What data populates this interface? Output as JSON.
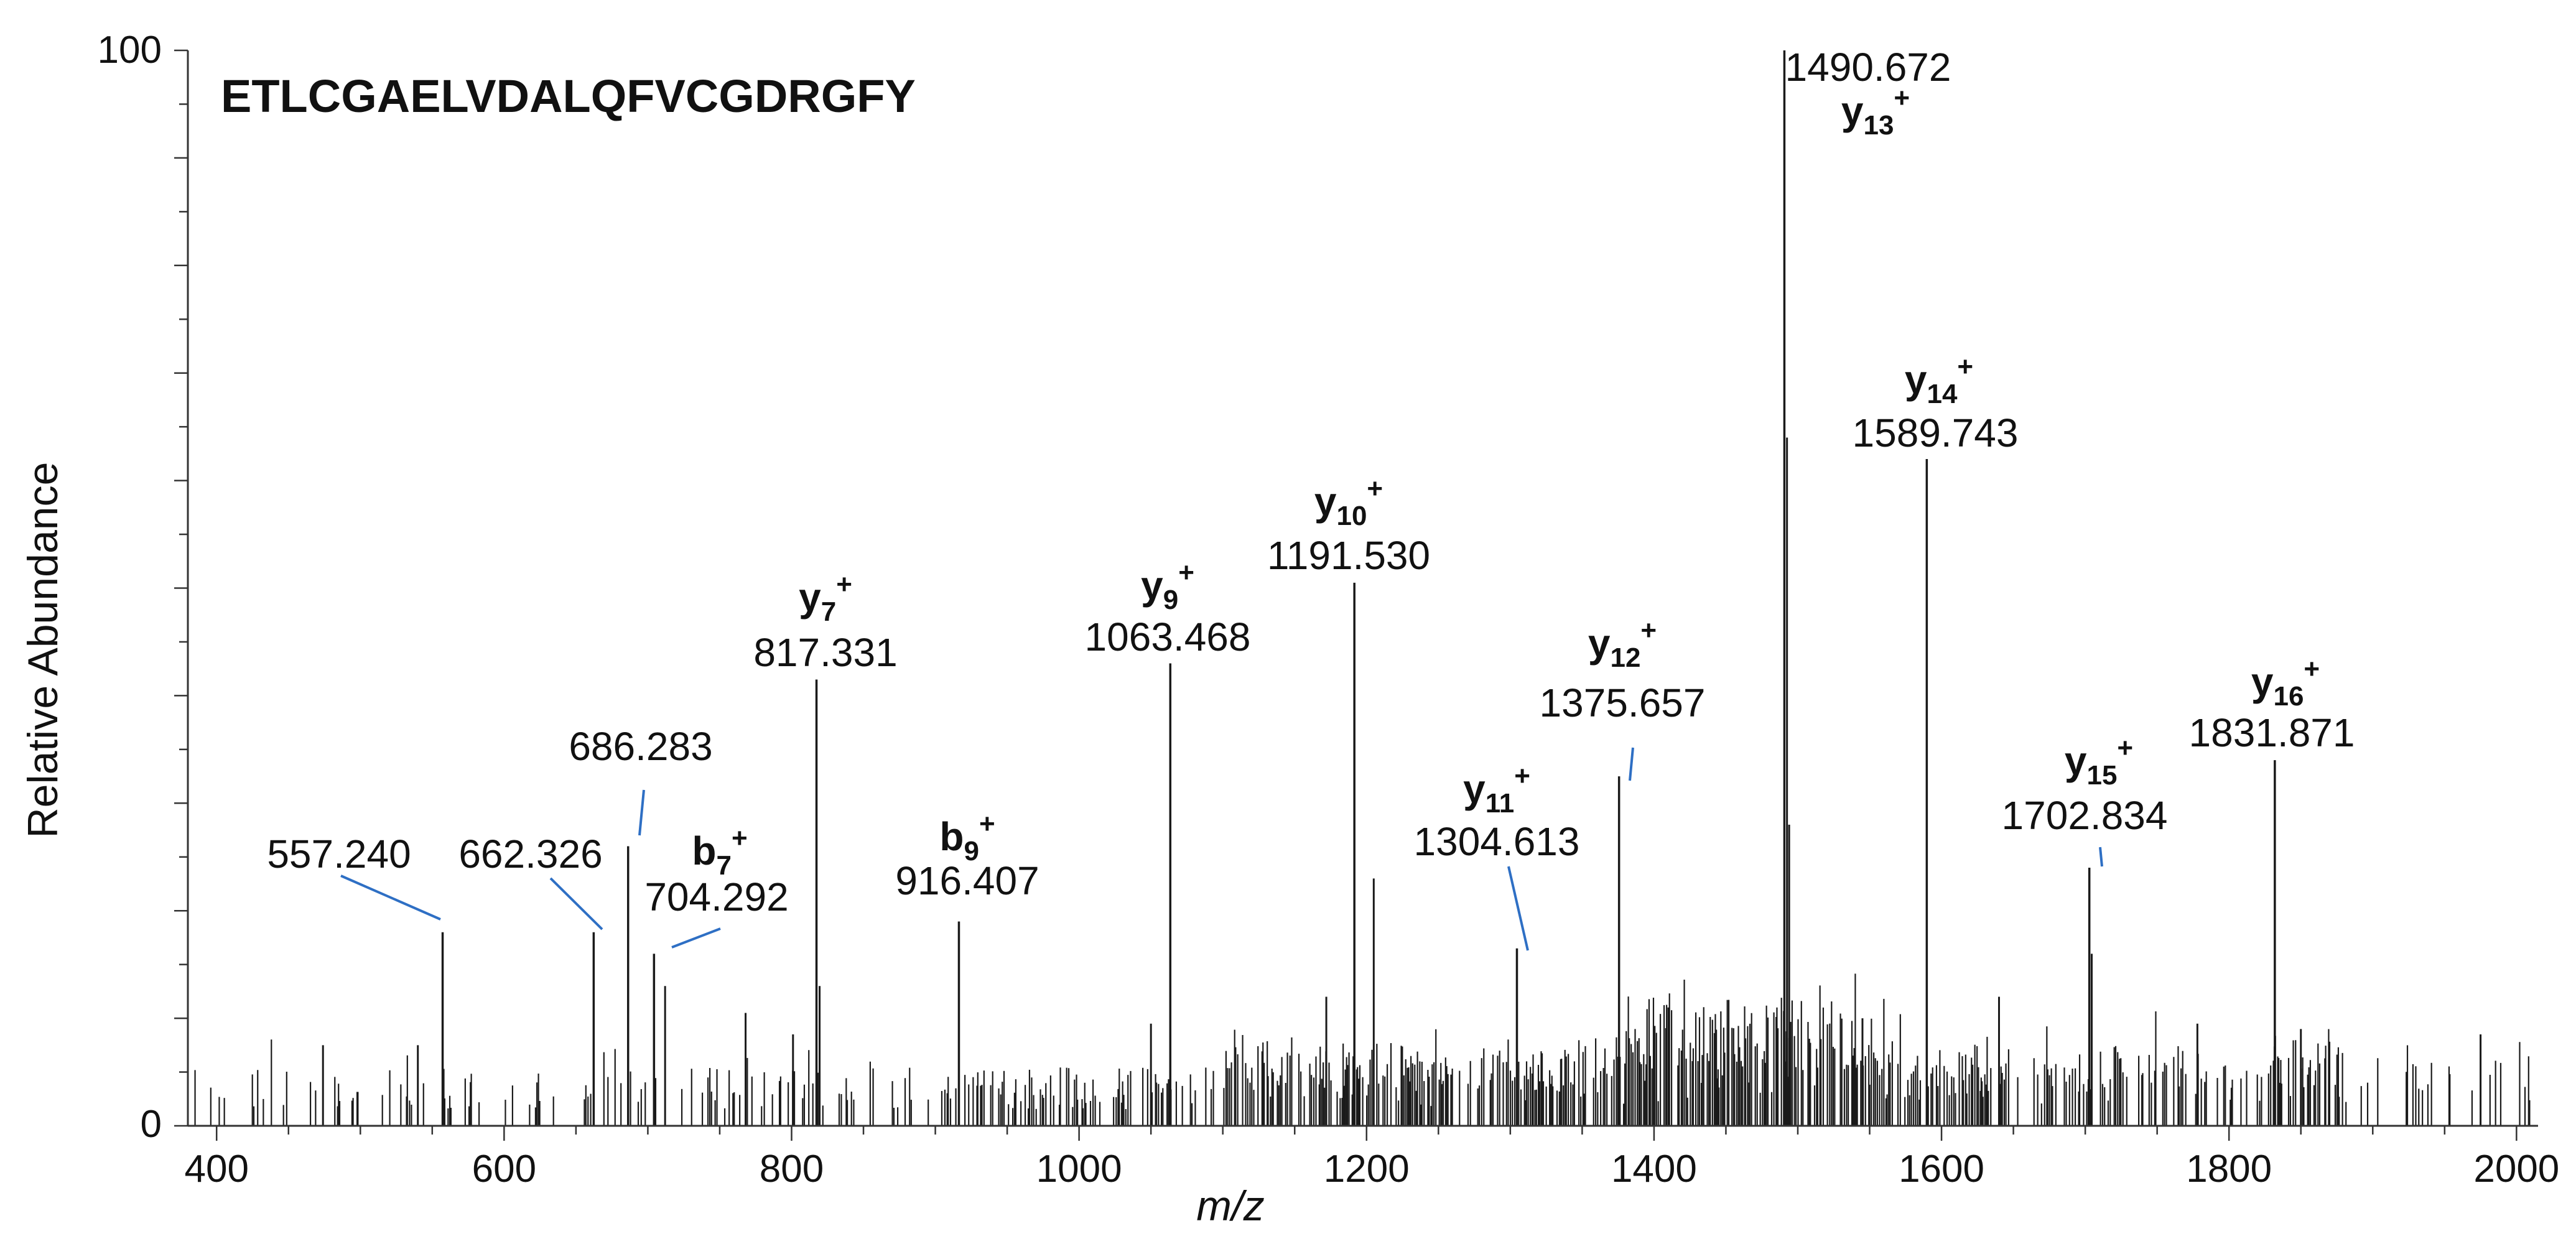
{
  "chart_data": {
    "type": "mass_spectrum",
    "title": "ETLCGAELVDALQFVCGDRGFY",
    "xlabel": "m/z",
    "ylabel": "Relative Abundance",
    "xlim": [
      380,
      2015
    ],
    "ylim": [
      0,
      100
    ],
    "xticks": [
      400,
      600,
      800,
      1000,
      1200,
      1400,
      1600,
      1800,
      2000
    ],
    "yticks": [
      0,
      100
    ],
    "colors": {
      "peaks": "#1a1a1a",
      "axis": "#333333",
      "leader": "#2e6fc4",
      "text": "#111111"
    },
    "labeled_peaks": [
      {
        "mz": 557.24,
        "intensity": 18,
        "mz_label": "557.240",
        "ion": ""
      },
      {
        "mz": 662.326,
        "intensity": 18,
        "mz_label": "662.326",
        "ion": ""
      },
      {
        "mz": 686.283,
        "intensity": 26,
        "mz_label": "686.283",
        "ion": ""
      },
      {
        "mz": 704.292,
        "intensity": 16,
        "mz_label": "704.292",
        "ion": "b",
        "ion_sub": "7",
        "ion_sup": "+"
      },
      {
        "mz": 817.331,
        "intensity": 41.5,
        "mz_label": "817.331",
        "ion": "y",
        "ion_sub": "7",
        "ion_sup": "+"
      },
      {
        "mz": 916.407,
        "intensity": 19,
        "mz_label": "916.407",
        "ion": "b",
        "ion_sub": "9",
        "ion_sup": "+"
      },
      {
        "mz": 1063.468,
        "intensity": 43,
        "mz_label": "1063.468",
        "ion": "y",
        "ion_sub": "9",
        "ion_sup": "+"
      },
      {
        "mz": 1191.53,
        "intensity": 50.5,
        "mz_label": "1191.530",
        "ion": "y",
        "ion_sub": "10",
        "ion_sup": "+"
      },
      {
        "mz": 1304.613,
        "intensity": 16.5,
        "mz_label": "1304.613",
        "ion": "y",
        "ion_sub": "11",
        "ion_sup": "+"
      },
      {
        "mz": 1375.657,
        "intensity": 32.5,
        "mz_label": "1375.657",
        "ion": "y",
        "ion_sub": "12",
        "ion_sup": "+"
      },
      {
        "mz": 1490.672,
        "intensity": 100,
        "mz_label": "1490.672",
        "ion": "y",
        "ion_sub": "13",
        "ion_sup": "+"
      },
      {
        "mz": 1589.743,
        "intensity": 62,
        "mz_label": "1589.743",
        "ion": "y",
        "ion_sub": "14",
        "ion_sup": "+"
      },
      {
        "mz": 1702.834,
        "intensity": 24,
        "mz_label": "1702.834",
        "ion": "y",
        "ion_sub": "15",
        "ion_sup": "+"
      },
      {
        "mz": 1831.871,
        "intensity": 34,
        "mz_label": "1831.871",
        "ion": "y",
        "ion_sub": "16",
        "ion_sup": "+"
      }
    ],
    "minor_peaks": [
      {
        "mz": 1492.5,
        "intensity": 64
      },
      {
        "mz": 1494.0,
        "intensity": 28
      },
      {
        "mz": 1205.0,
        "intensity": 23
      },
      {
        "mz": 1704.5,
        "intensity": 16
      },
      {
        "mz": 819.5,
        "intensity": 13
      },
      {
        "mz": 712.0,
        "intensity": 13
      },
      {
        "mz": 540.0,
        "intensity": 7.5
      },
      {
        "mz": 474.0,
        "intensity": 7.5
      },
      {
        "mz": 768.0,
        "intensity": 10.5
      },
      {
        "mz": 801.0,
        "intensity": 8.5
      },
      {
        "mz": 1050.0,
        "intensity": 9.5
      },
      {
        "mz": 1172.0,
        "intensity": 12
      },
      {
        "mz": 1410.0,
        "intensity": 11
      },
      {
        "mz": 1545.0,
        "intensity": 10
      },
      {
        "mz": 1640.0,
        "intensity": 12
      },
      {
        "mz": 1778.0,
        "intensity": 9.5
      },
      {
        "mz": 1850.0,
        "intensity": 9
      },
      {
        "mz": 1975.0,
        "intensity": 8.5
      }
    ],
    "noise": {
      "seed": 7,
      "mz_min": 385,
      "mz_max": 2012
    }
  }
}
